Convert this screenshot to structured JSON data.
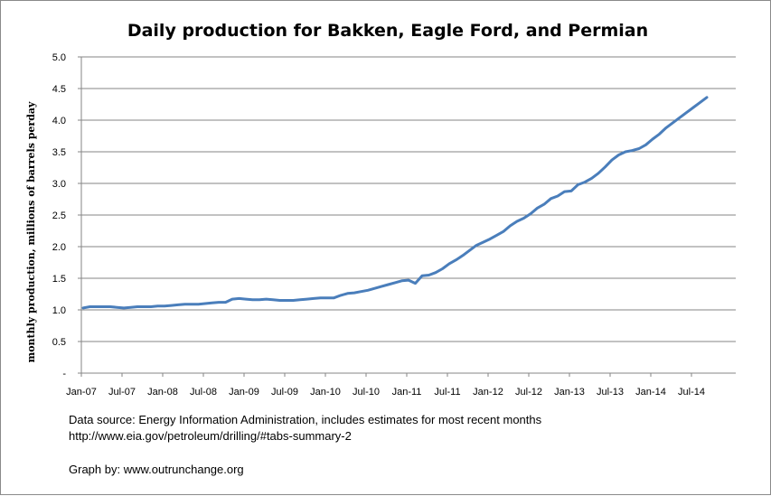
{
  "chart_data": {
    "type": "line",
    "title": "Daily production for Bakken, Eagle Ford, and Permian",
    "xlabel": "",
    "ylabel": "monthly production, millions of barrels perday",
    "ylim": [
      0,
      5.0
    ],
    "yticks": [
      "-",
      "0.5",
      "1.0",
      "1.5",
      "2.0",
      "2.5",
      "3.0",
      "3.5",
      "4.0",
      "4.5",
      "5.0"
    ],
    "xticks": [
      "Jan-07",
      "Jul-07",
      "Jan-08",
      "Jul-08",
      "Jan-09",
      "Jul-09",
      "Jan-10",
      "Jul-10",
      "Jan-11",
      "Jul-11",
      "Jan-12",
      "Jul-12",
      "Jan-13",
      "Jul-13",
      "Jan-14",
      "Jul-14"
    ],
    "grid": true,
    "legend": "none",
    "line_color": "#4a7ebb",
    "series": [
      {
        "x_start": "Jan-07",
        "frequency": "monthly",
        "values": [
          1.03,
          1.05,
          1.05,
          1.05,
          1.05,
          1.04,
          1.03,
          1.04,
          1.05,
          1.05,
          1.05,
          1.06,
          1.06,
          1.07,
          1.08,
          1.09,
          1.09,
          1.09,
          1.1,
          1.11,
          1.12,
          1.12,
          1.17,
          1.18,
          1.17,
          1.16,
          1.16,
          1.17,
          1.16,
          1.15,
          1.15,
          1.15,
          1.16,
          1.17,
          1.18,
          1.19,
          1.19,
          1.19,
          1.23,
          1.26,
          1.27,
          1.29,
          1.31,
          1.34,
          1.37,
          1.4,
          1.43,
          1.46,
          1.47,
          1.42,
          1.54,
          1.55,
          1.59,
          1.65,
          1.73,
          1.79,
          1.86,
          1.94,
          2.02,
          2.07,
          2.12,
          2.18,
          2.24,
          2.33,
          2.4,
          2.45,
          2.52,
          2.61,
          2.67,
          2.76,
          2.8,
          2.87,
          2.88,
          2.98,
          3.02,
          3.08,
          3.16,
          3.26,
          3.37,
          3.45,
          3.5,
          3.52,
          3.55,
          3.61,
          3.7,
          3.78,
          3.88,
          3.96,
          4.04,
          4.12,
          4.2,
          4.28,
          4.36
        ]
      }
    ]
  },
  "notes": {
    "source_line1": "Data source: Energy Information Administration, includes estimates for most recent months",
    "source_line2": "http://www.eia.gov/petroleum/drilling/#tabs-summary-2",
    "credit": "Graph by: www.outrunchange.org"
  }
}
